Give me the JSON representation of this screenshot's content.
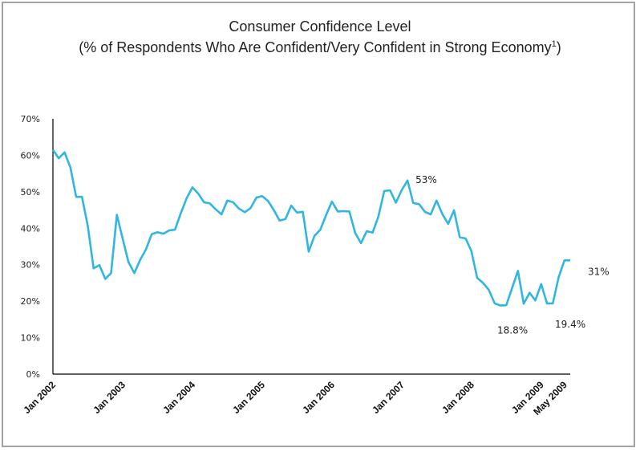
{
  "chart_data": {
    "type": "line",
    "title": "Consumer Confidence Level",
    "subtitle": "(% of Respondents Who Are Confident/Very Confident in Strong Economy",
    "subtitle_superscript": "1",
    "xlabel": "",
    "ylabel": "",
    "ylim": [
      0,
      70
    ],
    "yticks": [
      "0%",
      "10%",
      "20%",
      "30%",
      "40%",
      "50%",
      "60%",
      "70%"
    ],
    "xticks": [
      {
        "label": "Jan 2002",
        "index": 0
      },
      {
        "label": "Jan 2003",
        "index": 12
      },
      {
        "label": "Jan 2004",
        "index": 24
      },
      {
        "label": "Jan 2005",
        "index": 36
      },
      {
        "label": "Jan 2006",
        "index": 48
      },
      {
        "label": "Jan 2007",
        "index": 60
      },
      {
        "label": "Jan 2008",
        "index": 72
      },
      {
        "label": "Jan 2009",
        "index": 84
      },
      {
        "label": "May 2009",
        "index": 88
      }
    ],
    "grid": false,
    "line_color": "#31b5e1",
    "series": [
      {
        "values": [
          61.5,
          59.2,
          60.8,
          56.7,
          48.6,
          48.6,
          40.6,
          29.0,
          29.9,
          26.1,
          27.7,
          43.7,
          37.1,
          30.7,
          27.7,
          31.3,
          34.2,
          38.4,
          38.9,
          38.5,
          39.4,
          39.6,
          44.1,
          48.2,
          51.2,
          49.5,
          47.1,
          46.8,
          45.2,
          43.8,
          47.6,
          47.1,
          45.4,
          44.4,
          45.5,
          48.4,
          48.8,
          47.5,
          45.0,
          42.1,
          42.5,
          46.2,
          44.3,
          44.5,
          33.6,
          37.9,
          39.6,
          43.6,
          47.3,
          44.6,
          44.7,
          44.6,
          38.7,
          35.9,
          39.2,
          38.8,
          43.2,
          50.2,
          50.4,
          47.0,
          50.4,
          53.1,
          46.9,
          46.6,
          44.5,
          43.8,
          47.6,
          43.9,
          41.2,
          44.9,
          37.5,
          37.2,
          33.7,
          26.4,
          25.0,
          23.1,
          19.4,
          18.8,
          18.9,
          23.6,
          28.3,
          19.3,
          22.3,
          20.2,
          24.7,
          19.4,
          19.4,
          26.5,
          31.2,
          31.2
        ]
      }
    ],
    "annotations": [
      {
        "text": "53%",
        "index": 61
      },
      {
        "text": "18.8%",
        "index": 77
      },
      {
        "text": "19.4%",
        "index": 85
      },
      {
        "text": "31%",
        "index": 89
      }
    ]
  }
}
